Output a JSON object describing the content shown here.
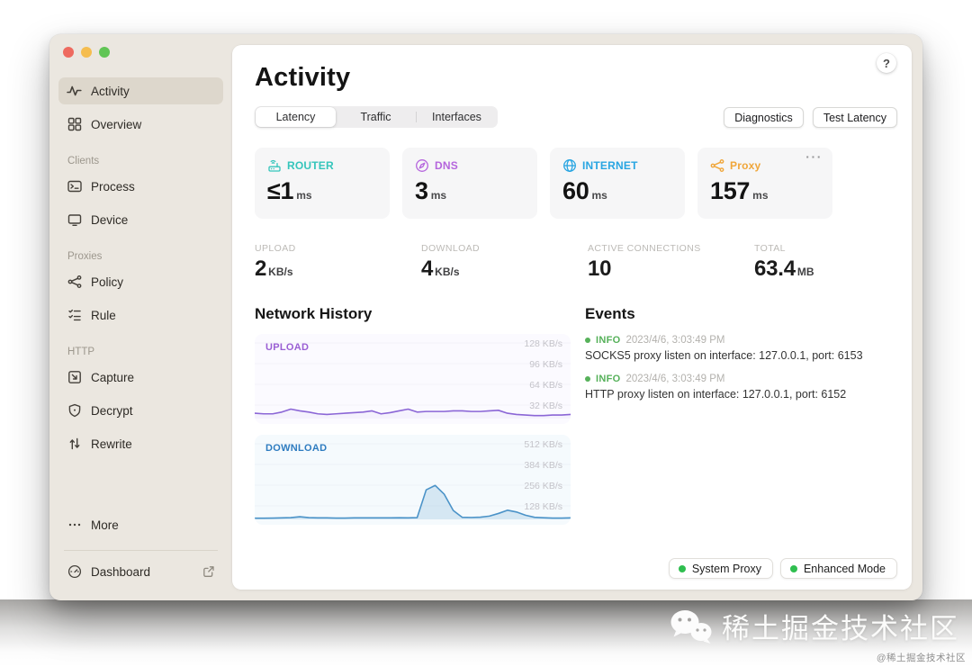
{
  "header": {
    "title": "Activity",
    "tabs": [
      "Latency",
      "Traffic",
      "Interfaces"
    ],
    "diagnostics": "Diagnostics",
    "test_latency": "Test Latency",
    "help": "?"
  },
  "sidebar": {
    "primary": [
      {
        "label": "Activity"
      },
      {
        "label": "Overview"
      }
    ],
    "sections": [
      {
        "title": "Clients",
        "items": [
          {
            "label": "Process"
          },
          {
            "label": "Device"
          }
        ]
      },
      {
        "title": "Proxies",
        "items": [
          {
            "label": "Policy"
          },
          {
            "label": "Rule"
          }
        ]
      },
      {
        "title": "HTTP",
        "items": [
          {
            "label": "Capture"
          },
          {
            "label": "Decrypt"
          },
          {
            "label": "Rewrite"
          }
        ]
      }
    ],
    "more": "More",
    "dashboard": "Dashboard"
  },
  "latency_cards": [
    {
      "name": "ROUTER",
      "value": "≤1",
      "unit": "ms",
      "color": "#35c5bb"
    },
    {
      "name": "DNS",
      "value": "3",
      "unit": "ms",
      "color": "#b565dd"
    },
    {
      "name": "INTERNET",
      "value": "60",
      "unit": "ms",
      "color": "#28a5e2"
    },
    {
      "name": "Proxy",
      "value": "157",
      "unit": "ms",
      "color": "#f0a63a",
      "menu": "···"
    }
  ],
  "stats": [
    {
      "label": "UPLOAD",
      "value": "2",
      "unit": "KB/s"
    },
    {
      "label": "DOWNLOAD",
      "value": "4",
      "unit": "KB/s"
    },
    {
      "label": "ACTIVE CONNECTIONS",
      "value": "10",
      "unit": ""
    },
    {
      "label": "TOTAL",
      "value": "63.4",
      "unit": "MB"
    }
  ],
  "section_titles": {
    "network_history": "Network History",
    "events": "Events"
  },
  "chart_data": [
    {
      "type": "area",
      "title": "UPLOAD",
      "ylabels": [
        "128 KB/s",
        "96 KB/s",
        "64 KB/s",
        "32 KB/s"
      ],
      "ymax": 128,
      "ylim": [
        0,
        128
      ],
      "unit": "KB/s",
      "legend_position": "top-left",
      "grid": false,
      "line_color": "#8b66d6",
      "fill_color": "rgba(141,104,214,0.05)",
      "label_color": "#9a5fd4",
      "values": [
        9,
        8,
        8,
        11,
        16,
        13,
        11,
        8,
        7,
        8,
        9,
        10,
        11,
        13,
        8,
        10,
        13,
        16,
        11,
        12,
        12,
        12,
        13,
        13,
        12,
        12,
        13,
        14,
        9,
        7,
        6,
        5,
        5,
        6,
        6,
        7
      ]
    },
    {
      "type": "area",
      "title": "DOWNLOAD",
      "ylabels": [
        "512 KB/s",
        "384 KB/s",
        "256 KB/s",
        "128 KB/s"
      ],
      "ymax": 512,
      "ylim": [
        0,
        512
      ],
      "unit": "KB/s",
      "legend_position": "top-left",
      "grid": false,
      "line_color": "#4b93c8",
      "fill_color": "rgba(120,176,214,0.25)",
      "label_color": "#2e7cc0",
      "values": [
        8,
        8,
        9,
        10,
        12,
        18,
        12,
        10,
        10,
        9,
        9,
        10,
        10,
        10,
        10,
        10,
        11,
        10,
        12,
        200,
        230,
        170,
        60,
        14,
        13,
        15,
        22,
        40,
        62,
        50,
        28,
        14,
        11,
        9,
        9,
        10
      ]
    }
  ],
  "events": {
    "items": [
      {
        "level": "INFO",
        "time": "2023/4/6, 3:03:49 PM",
        "message": "SOCKS5 proxy listen on interface: 127.0.0.1, port: 6153"
      },
      {
        "level": "INFO",
        "time": "2023/4/6, 3:03:49 PM",
        "message": "HTTP proxy listen on interface: 127.0.0.1, port: 6152"
      }
    ]
  },
  "badges": [
    {
      "label": "System Proxy",
      "dot_color": "#2fbe4f"
    },
    {
      "label": "Enhanced Mode",
      "dot_color": "#2fbe4f"
    }
  ],
  "watermark": {
    "brand": "稀土掘金技术社区",
    "handle": "@稀土掘金技术社区"
  }
}
